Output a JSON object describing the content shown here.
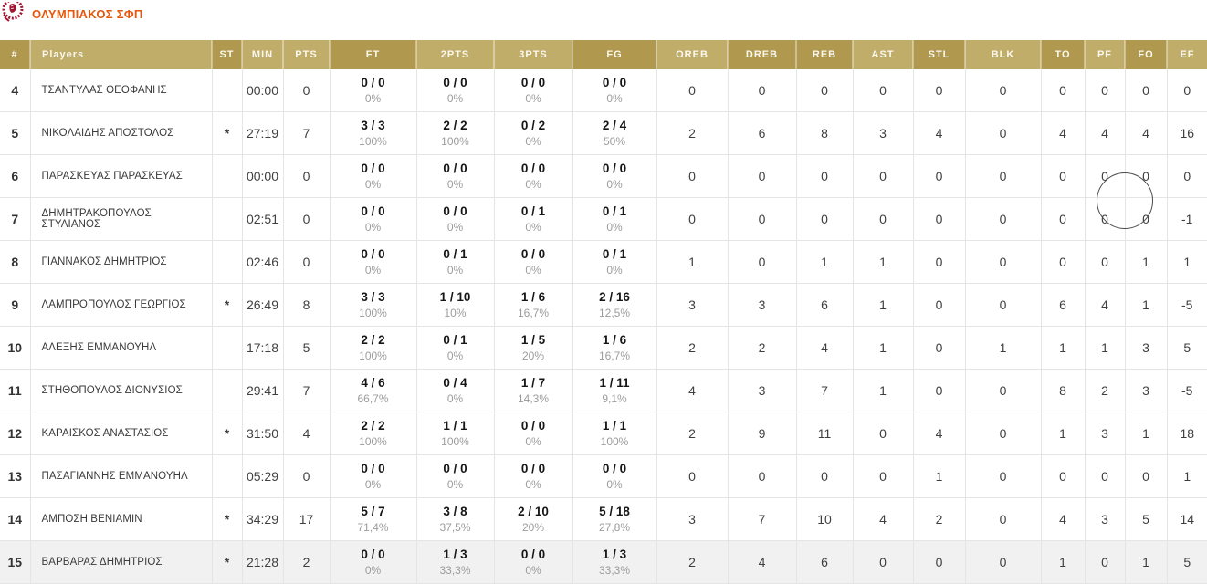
{
  "team": {
    "name": "ΟΛΥΜΠΙΑΚΟΣ ΣΦΠ"
  },
  "icons": {
    "team_logo": "olympiacos-crest-icon"
  },
  "colors": {
    "title_orange": "#e4570e",
    "logo_red": "#a21532",
    "header_gold_dark": "#b0984f",
    "header_gold_light": "#c1ad6a",
    "stat_text": "#3f3f3f",
    "fraction_text": "#161616",
    "percent_gray": "#9c9c9c",
    "highlight_row": "#f1f1f1"
  },
  "table": {
    "columns": [
      {
        "key": "num",
        "label": "#",
        "type": "text",
        "tone": "dark"
      },
      {
        "key": "player",
        "label": "Players",
        "type": "text",
        "tone": "light"
      },
      {
        "key": "st",
        "label": "ST",
        "type": "text",
        "tone": "dark"
      },
      {
        "key": "min",
        "label": "MIN",
        "type": "text",
        "tone": "light"
      },
      {
        "key": "pts",
        "label": "PTS",
        "type": "text",
        "tone": "light"
      },
      {
        "key": "ft",
        "label": "FT",
        "type": "split",
        "tone": "dark"
      },
      {
        "key": "p2",
        "label": "2PTS",
        "type": "split",
        "tone": "light"
      },
      {
        "key": "p3",
        "label": "3PTS",
        "type": "split",
        "tone": "light"
      },
      {
        "key": "fg",
        "label": "FG",
        "type": "split",
        "tone": "dark"
      },
      {
        "key": "oreb",
        "label": "OREB",
        "type": "text",
        "tone": "light"
      },
      {
        "key": "dreb",
        "label": "DREB",
        "type": "text",
        "tone": "dark"
      },
      {
        "key": "reb",
        "label": "REB",
        "type": "text",
        "tone": "dark"
      },
      {
        "key": "ast",
        "label": "AST",
        "type": "text",
        "tone": "light"
      },
      {
        "key": "stl",
        "label": "STL",
        "type": "text",
        "tone": "dark"
      },
      {
        "key": "blk",
        "label": "BLK",
        "type": "text",
        "tone": "light"
      },
      {
        "key": "to",
        "label": "TO",
        "type": "text",
        "tone": "dark"
      },
      {
        "key": "pf",
        "label": "PF",
        "type": "text",
        "tone": "light"
      },
      {
        "key": "fo",
        "label": "FO",
        "type": "text",
        "tone": "dark"
      },
      {
        "key": "ef",
        "label": "EF",
        "type": "text",
        "tone": "light"
      }
    ],
    "rows": [
      {
        "num": "4",
        "player": "ΤΣΑΝΤΥΛΑΣ ΘΕΟΦΑΝΗΣ",
        "st": "",
        "min": "00:00",
        "pts": "0",
        "ft": {
          "frac": "0 / 0",
          "pct": "0%"
        },
        "p2": {
          "frac": "0 / 0",
          "pct": "0%"
        },
        "p3": {
          "frac": "0 / 0",
          "pct": "0%"
        },
        "fg": {
          "frac": "0 / 0",
          "pct": "0%"
        },
        "oreb": "0",
        "dreb": "0",
        "reb": "0",
        "ast": "0",
        "stl": "0",
        "blk": "0",
        "to": "0",
        "pf": "0",
        "fo": "0",
        "ef": "0",
        "highlighted": false
      },
      {
        "num": "5",
        "player": "ΝΙΚΟΛΑΙΔΗΣ ΑΠΟΣΤΟΛΟΣ",
        "st": "*",
        "min": "27:19",
        "pts": "7",
        "ft": {
          "frac": "3 / 3",
          "pct": "100%"
        },
        "p2": {
          "frac": "2 / 2",
          "pct": "100%"
        },
        "p3": {
          "frac": "0 / 2",
          "pct": "0%"
        },
        "fg": {
          "frac": "2 / 4",
          "pct": "50%"
        },
        "oreb": "2",
        "dreb": "6",
        "reb": "8",
        "ast": "3",
        "stl": "4",
        "blk": "0",
        "to": "4",
        "pf": "4",
        "fo": "4",
        "ef": "16",
        "highlighted": false
      },
      {
        "num": "6",
        "player": "ΠΑΡΑΣΚΕΥΑΣ ΠΑΡΑΣΚΕΥΑΣ",
        "st": "",
        "min": "00:00",
        "pts": "0",
        "ft": {
          "frac": "0 / 0",
          "pct": "0%"
        },
        "p2": {
          "frac": "0 / 0",
          "pct": "0%"
        },
        "p3": {
          "frac": "0 / 0",
          "pct": "0%"
        },
        "fg": {
          "frac": "0 / 0",
          "pct": "0%"
        },
        "oreb": "0",
        "dreb": "0",
        "reb": "0",
        "ast": "0",
        "stl": "0",
        "blk": "0",
        "to": "0",
        "pf": "0",
        "fo": "0",
        "ef": "0",
        "highlighted": false
      },
      {
        "num": "7",
        "player": "ΔΗΜΗΤΡΑΚΟΠΟΥΛΟΣ ΣΤΥΛΙΑΝΟΣ",
        "st": "",
        "min": "02:51",
        "pts": "0",
        "ft": {
          "frac": "0 / 0",
          "pct": "0%"
        },
        "p2": {
          "frac": "0 / 0",
          "pct": "0%"
        },
        "p3": {
          "frac": "0 / 1",
          "pct": "0%"
        },
        "fg": {
          "frac": "0 / 1",
          "pct": "0%"
        },
        "oreb": "0",
        "dreb": "0",
        "reb": "0",
        "ast": "0",
        "stl": "0",
        "blk": "0",
        "to": "0",
        "pf": "0",
        "fo": "0",
        "ef": "-1",
        "highlighted": false
      },
      {
        "num": "8",
        "player": "ΓΙΑΝΝΑΚΟΣ ΔΗΜΗΤΡΙΟΣ",
        "st": "",
        "min": "02:46",
        "pts": "0",
        "ft": {
          "frac": "0 / 0",
          "pct": "0%"
        },
        "p2": {
          "frac": "0 / 1",
          "pct": "0%"
        },
        "p3": {
          "frac": "0 / 0",
          "pct": "0%"
        },
        "fg": {
          "frac": "0 / 1",
          "pct": "0%"
        },
        "oreb": "1",
        "dreb": "0",
        "reb": "1",
        "ast": "1",
        "stl": "0",
        "blk": "0",
        "to": "0",
        "pf": "0",
        "fo": "1",
        "ef": "1",
        "highlighted": false
      },
      {
        "num": "9",
        "player": "ΛΑΜΠΡΟΠΟΥΛΟΣ ΓΕΩΡΓΙΟΣ",
        "st": "*",
        "min": "26:49",
        "pts": "8",
        "ft": {
          "frac": "3 / 3",
          "pct": "100%"
        },
        "p2": {
          "frac": "1 / 10",
          "pct": "10%"
        },
        "p3": {
          "frac": "1 / 6",
          "pct": "16,7%"
        },
        "fg": {
          "frac": "2 / 16",
          "pct": "12,5%"
        },
        "oreb": "3",
        "dreb": "3",
        "reb": "6",
        "ast": "1",
        "stl": "0",
        "blk": "0",
        "to": "6",
        "pf": "4",
        "fo": "1",
        "ef": "-5",
        "highlighted": false
      },
      {
        "num": "10",
        "player": "ΑΛΕΞΗΣ ΕΜΜΑΝΟΥΗΛ",
        "st": "",
        "min": "17:18",
        "pts": "5",
        "ft": {
          "frac": "2 / 2",
          "pct": "100%"
        },
        "p2": {
          "frac": "0 / 1",
          "pct": "0%"
        },
        "p3": {
          "frac": "1 / 5",
          "pct": "20%"
        },
        "fg": {
          "frac": "1 / 6",
          "pct": "16,7%"
        },
        "oreb": "2",
        "dreb": "2",
        "reb": "4",
        "ast": "1",
        "stl": "0",
        "blk": "1",
        "to": "1",
        "pf": "1",
        "fo": "3",
        "ef": "5",
        "highlighted": false
      },
      {
        "num": "11",
        "player": "ΣΤΗΘΟΠΟΥΛΟΣ ΔΙΟΝΥΣΙΟΣ",
        "st": "",
        "min": "29:41",
        "pts": "7",
        "ft": {
          "frac": "4 / 6",
          "pct": "66,7%"
        },
        "p2": {
          "frac": "0 / 4",
          "pct": "0%"
        },
        "p3": {
          "frac": "1 / 7",
          "pct": "14,3%"
        },
        "fg": {
          "frac": "1 / 11",
          "pct": "9,1%"
        },
        "oreb": "4",
        "dreb": "3",
        "reb": "7",
        "ast": "1",
        "stl": "0",
        "blk": "0",
        "to": "8",
        "pf": "2",
        "fo": "3",
        "ef": "-5",
        "highlighted": false
      },
      {
        "num": "12",
        "player": "ΚΑΡΑΙΣΚΟΣ ΑΝΑΣΤΑΣΙΟΣ",
        "st": "*",
        "min": "31:50",
        "pts": "4",
        "ft": {
          "frac": "2 / 2",
          "pct": "100%"
        },
        "p2": {
          "frac": "1 / 1",
          "pct": "100%"
        },
        "p3": {
          "frac": "0 / 0",
          "pct": "0%"
        },
        "fg": {
          "frac": "1 / 1",
          "pct": "100%"
        },
        "oreb": "2",
        "dreb": "9",
        "reb": "11",
        "ast": "0",
        "stl": "4",
        "blk": "0",
        "to": "1",
        "pf": "3",
        "fo": "1",
        "ef": "18",
        "highlighted": false
      },
      {
        "num": "13",
        "player": "ΠΑΣΑΓΙΑΝΝΗΣ ΕΜΜΑΝΟΥΗΛ",
        "st": "",
        "min": "05:29",
        "pts": "0",
        "ft": {
          "frac": "0 / 0",
          "pct": "0%"
        },
        "p2": {
          "frac": "0 / 0",
          "pct": "0%"
        },
        "p3": {
          "frac": "0 / 0",
          "pct": "0%"
        },
        "fg": {
          "frac": "0 / 0",
          "pct": "0%"
        },
        "oreb": "0",
        "dreb": "0",
        "reb": "0",
        "ast": "0",
        "stl": "1",
        "blk": "0",
        "to": "0",
        "pf": "0",
        "fo": "0",
        "ef": "1",
        "highlighted": false
      },
      {
        "num": "14",
        "player": "ΑΜΠΟΣΗ ΒΕΝΙΑΜΙΝ",
        "st": "*",
        "min": "34:29",
        "pts": "17",
        "ft": {
          "frac": "5 / 7",
          "pct": "71,4%"
        },
        "p2": {
          "frac": "3 / 8",
          "pct": "37,5%"
        },
        "p3": {
          "frac": "2 / 10",
          "pct": "20%"
        },
        "fg": {
          "frac": "5 / 18",
          "pct": "27,8%"
        },
        "oreb": "3",
        "dreb": "7",
        "reb": "10",
        "ast": "4",
        "stl": "2",
        "blk": "0",
        "to": "4",
        "pf": "3",
        "fo": "5",
        "ef": "14",
        "highlighted": false
      },
      {
        "num": "15",
        "player": "ΒΑΡΒΑΡΑΣ ΔΗΜΗΤΡΙΟΣ",
        "st": "*",
        "min": "21:28",
        "pts": "2",
        "ft": {
          "frac": "0 / 0",
          "pct": "0%"
        },
        "p2": {
          "frac": "1 / 3",
          "pct": "33,3%"
        },
        "p3": {
          "frac": "0 / 0",
          "pct": "0%"
        },
        "fg": {
          "frac": "1 / 3",
          "pct": "33,3%"
        },
        "oreb": "2",
        "dreb": "4",
        "reb": "6",
        "ast": "0",
        "stl": "0",
        "blk": "0",
        "to": "1",
        "pf": "0",
        "fo": "1",
        "ef": "5",
        "highlighted": true
      }
    ]
  }
}
